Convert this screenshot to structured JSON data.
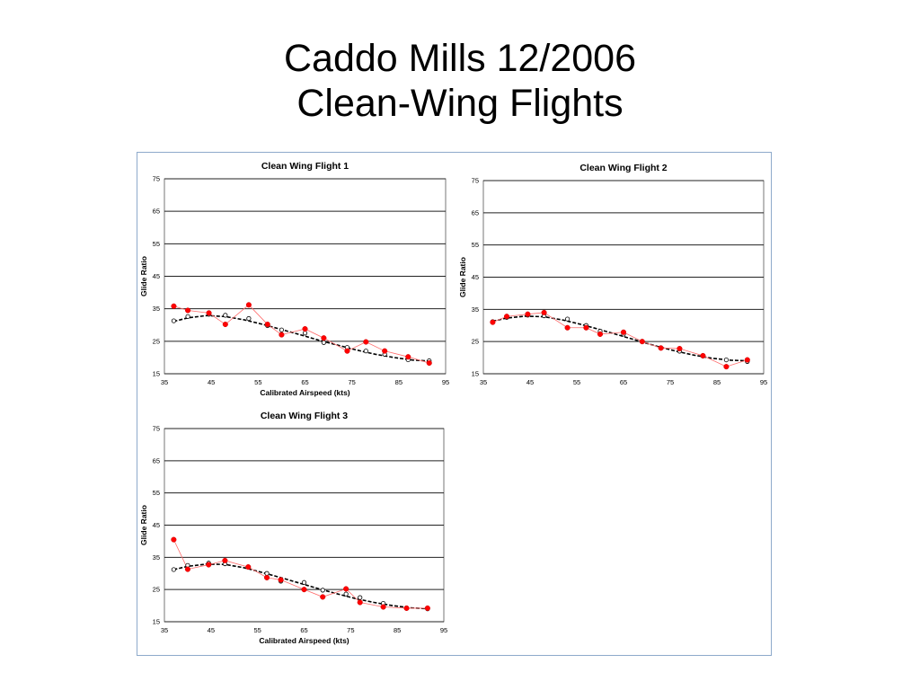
{
  "slide": {
    "title_line1": "Caddo Mills 12/2006",
    "title_line2": "Clean-Wing Flights"
  },
  "colors": {
    "measured": "#ff0000",
    "measured_line": "#ff6b6b",
    "fit": "#000000",
    "gridline": "#222222",
    "frame": "#8eaacb"
  },
  "chart_data": [
    {
      "type": "scatter",
      "title": "Clean Wing Flight 1",
      "xlabel": "Calibrated Airspeed  (kts)",
      "ylabel": "Glide Ratio",
      "xlim": [
        35,
        95
      ],
      "ylim": [
        15,
        75
      ],
      "xticks": [
        "35",
        "45",
        "55",
        "65",
        "75",
        "85",
        "95"
      ],
      "yticks": [
        "15",
        "25",
        "35",
        "45",
        "55",
        "65",
        "75"
      ],
      "grid": true,
      "series": [
        {
          "marker": "filled-circle",
          "color": "#ff0000",
          "line": "thin-red",
          "points": [
            [
              37,
              35.8
            ],
            [
              40,
              34.5
            ],
            [
              44.5,
              33.7
            ],
            [
              48,
              30.2
            ],
            [
              53,
              36.2
            ],
            [
              57,
              30.2
            ],
            [
              60,
              27
            ],
            [
              65,
              28.8
            ],
            [
              69,
              26
            ],
            [
              74,
              22
            ],
            [
              78,
              24.8
            ],
            [
              82,
              22
            ],
            [
              87,
              20.2
            ],
            [
              91.5,
              18.3
            ]
          ]
        },
        {
          "marker": "open-circle",
          "color": "#000000",
          "line": "none",
          "points": [
            [
              37,
              31.3
            ],
            [
              40,
              32.6
            ],
            [
              44.5,
              33.3
            ],
            [
              48,
              33
            ],
            [
              53,
              32
            ],
            [
              57,
              29.8
            ],
            [
              60,
              28.5
            ],
            [
              65,
              27.5
            ],
            [
              69,
              24.6
            ],
            [
              74,
              23.1
            ],
            [
              78,
              22
            ],
            [
              82,
              21
            ],
            [
              87,
              19.3
            ],
            [
              91.5,
              19
            ]
          ]
        },
        {
          "marker": "none",
          "color": "#000000",
          "line": "dashed-fit",
          "points": [
            [
              37,
              31.1
            ],
            [
              40,
              32.2
            ],
            [
              44,
              32.9
            ],
            [
              48,
              32.6
            ],
            [
              52,
              31.6
            ],
            [
              56,
              30.2
            ],
            [
              60,
              28.6
            ],
            [
              64,
              27
            ],
            [
              68,
              25.3
            ],
            [
              72,
              23.8
            ],
            [
              76,
              22.3
            ],
            [
              80,
              21
            ],
            [
              84,
              20
            ],
            [
              88,
              19.2
            ],
            [
              92,
              18.9
            ]
          ]
        }
      ]
    },
    {
      "type": "scatter",
      "title": "Clean Wing Flight 2",
      "xlabel": "",
      "ylabel": "Glide Ratio",
      "xlim": [
        35,
        95
      ],
      "ylim": [
        15,
        75
      ],
      "xticks": [
        "35",
        "45",
        "55",
        "65",
        "75",
        "85",
        "95"
      ],
      "yticks": [
        "15",
        "25",
        "35",
        "45",
        "55",
        "65",
        "75"
      ],
      "grid": true,
      "series": [
        {
          "marker": "filled-circle",
          "color": "#ff0000",
          "line": "thin-red",
          "points": [
            [
              37,
              31
            ],
            [
              40,
              32.8
            ],
            [
              44.5,
              33.5
            ],
            [
              48,
              34
            ],
            [
              53,
              29.3
            ],
            [
              57,
              29.3
            ],
            [
              60,
              27.3
            ],
            [
              65,
              27.9
            ],
            [
              69,
              25
            ],
            [
              73,
              23
            ],
            [
              77,
              22.8
            ],
            [
              82,
              20.6
            ],
            [
              87,
              17.2
            ],
            [
              91.5,
              19.3
            ]
          ]
        },
        {
          "marker": "open-circle",
          "color": "#000000",
          "line": "none",
          "points": [
            [
              37,
              31.2
            ],
            [
              40,
              32.5
            ],
            [
              44.5,
              33.2
            ],
            [
              48,
              33
            ],
            [
              53,
              32
            ],
            [
              57,
              30
            ],
            [
              60,
              28.2
            ],
            [
              65,
              27.3
            ],
            [
              69,
              25
            ],
            [
              73,
              23
            ],
            [
              77,
              22
            ],
            [
              82,
              20.5
            ],
            [
              87,
              19.3
            ],
            [
              91.5,
              18.8
            ]
          ]
        },
        {
          "marker": "none",
          "color": "#000000",
          "line": "dashed-fit",
          "points": [
            [
              37,
              31.3
            ],
            [
              40,
              32.3
            ],
            [
              44,
              32.9
            ],
            [
              48,
              32.7
            ],
            [
              52,
              31.7
            ],
            [
              56,
              30.3
            ],
            [
              60,
              28.7
            ],
            [
              64,
              27
            ],
            [
              68,
              25.3
            ],
            [
              72,
              23.6
            ],
            [
              76,
              22.1
            ],
            [
              80,
              20.8
            ],
            [
              84,
              19.8
            ],
            [
              88,
              19.2
            ],
            [
              92,
              19
            ]
          ]
        }
      ]
    },
    {
      "type": "scatter",
      "title": "Clean Wing Flight 3",
      "xlabel": "Calibrated Airspeed  (kts)",
      "ylabel": "Glide Ratio",
      "xlim": [
        35,
        95
      ],
      "ylim": [
        15,
        75
      ],
      "xticks": [
        "35",
        "45",
        "55",
        "65",
        "75",
        "85",
        "95"
      ],
      "yticks": [
        "15",
        "25",
        "35",
        "45",
        "55",
        "65",
        "75"
      ],
      "grid": true,
      "series": [
        {
          "marker": "filled-circle",
          "color": "#ff0000",
          "line": "thin-red",
          "points": [
            [
              37,
              40.5
            ],
            [
              40,
              31.3
            ],
            [
              44.5,
              32.7
            ],
            [
              48,
              34
            ],
            [
              53,
              32
            ],
            [
              57,
              28.7
            ],
            [
              60,
              28
            ],
            [
              65,
              25
            ],
            [
              69,
              22.7
            ],
            [
              74,
              25.2
            ],
            [
              77,
              21
            ],
            [
              82,
              19.6
            ],
            [
              87,
              19.2
            ],
            [
              91.5,
              19.2
            ]
          ]
        },
        {
          "marker": "open-circle",
          "color": "#000000",
          "line": "none",
          "points": [
            [
              37,
              31.2
            ],
            [
              40,
              32.5
            ],
            [
              44.5,
              33.2
            ],
            [
              48,
              33
            ],
            [
              53,
              32
            ],
            [
              57,
              30
            ],
            [
              60,
              27.6
            ],
            [
              65,
              27.2
            ],
            [
              69,
              24.8
            ],
            [
              74,
              23.6
            ],
            [
              77,
              22.5
            ],
            [
              82,
              20.7
            ],
            [
              87,
              19.3
            ],
            [
              91.5,
              19
            ]
          ]
        },
        {
          "marker": "none",
          "color": "#000000",
          "line": "dashed-fit",
          "points": [
            [
              37,
              31.2
            ],
            [
              40,
              32.2
            ],
            [
              44,
              32.9
            ],
            [
              48,
              32.8
            ],
            [
              52,
              31.8
            ],
            [
              56,
              30.3
            ],
            [
              60,
              28.7
            ],
            [
              64,
              27
            ],
            [
              68,
              25.3
            ],
            [
              72,
              23.7
            ],
            [
              76,
              22.2
            ],
            [
              80,
              21
            ],
            [
              84,
              20
            ],
            [
              88,
              19.3
            ],
            [
              92,
              19
            ]
          ]
        }
      ]
    }
  ]
}
